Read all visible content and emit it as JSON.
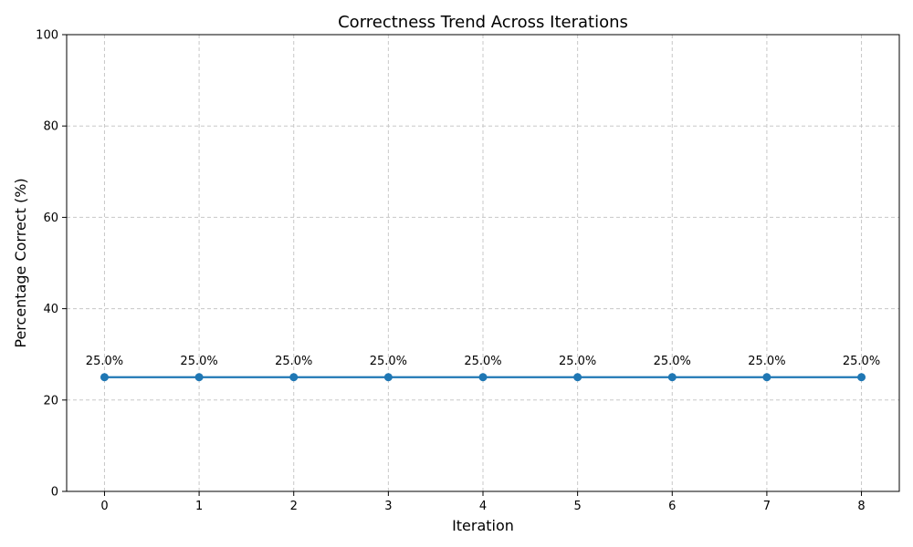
{
  "chart_data": {
    "type": "line",
    "title": "Correctness Trend Across Iterations",
    "xlabel": "Iteration",
    "ylabel": "Percentage Correct (%)",
    "x": [
      0,
      1,
      2,
      3,
      4,
      5,
      6,
      7,
      8
    ],
    "series": [
      {
        "values": [
          25.0,
          25.0,
          25.0,
          25.0,
          25.0,
          25.0,
          25.0,
          25.0,
          25.0
        ],
        "data_labels": [
          "25.0%",
          "25.0%",
          "25.0%",
          "25.0%",
          "25.0%",
          "25.0%",
          "25.0%",
          "25.0%",
          "25.0%"
        ],
        "color": "#1f77b4",
        "marker": "circle"
      }
    ],
    "xlim": [
      -0.4,
      8.4
    ],
    "ylim": [
      0,
      100
    ],
    "xticks": [
      0,
      1,
      2,
      3,
      4,
      5,
      6,
      7,
      8
    ],
    "yticks": [
      0,
      20,
      40,
      60,
      80,
      100
    ],
    "grid": true,
    "grid_style": "dashed",
    "grid_color": "#c8c8c8"
  }
}
